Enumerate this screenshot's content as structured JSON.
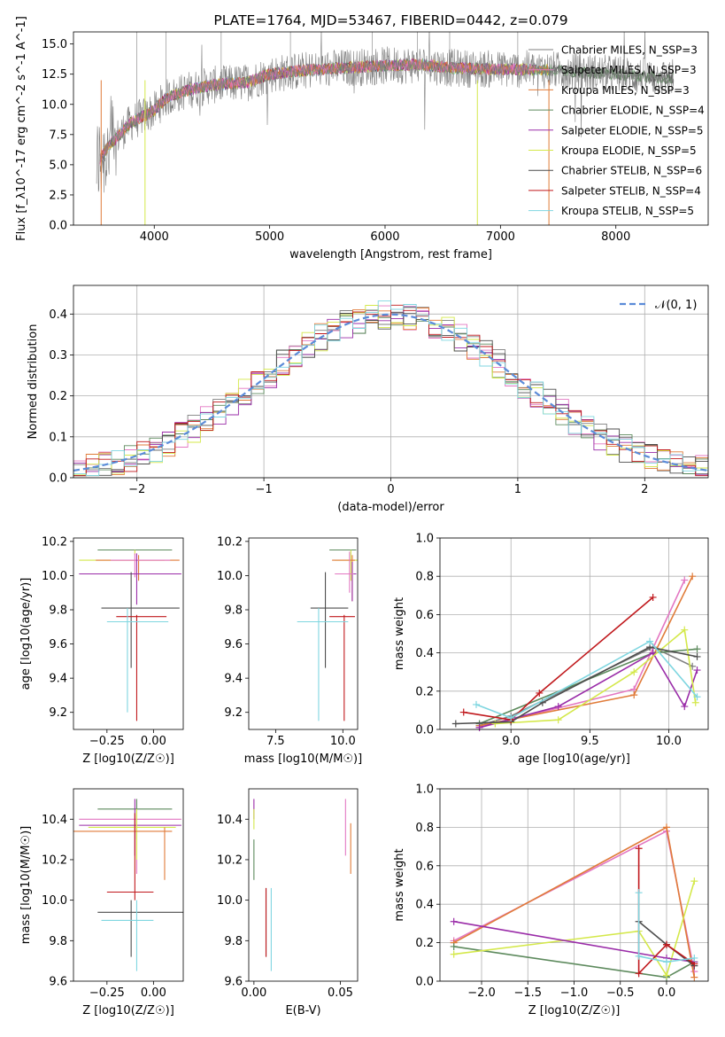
{
  "chart_data": [
    {
      "type": "line",
      "title": "PLATE=1764, MJD=53467, FIBERID=0442, z=0.079",
      "xlabel": "wavelength [Angstrom, rest frame]",
      "ylabel": "Flux [f_λ10^-17 erg cm^-2 s^-1 A^-1]",
      "xlim": [
        3300,
        8800
      ],
      "ylim": [
        0,
        16
      ],
      "xticks": [
        "4000",
        "5000",
        "6000",
        "7000",
        "8000"
      ],
      "yticks": [
        "0.0",
        "2.5",
        "5.0",
        "7.5",
        "10.0",
        "12.5",
        "15.0"
      ],
      "legend_position": "right",
      "legend": [
        {
          "label": "Chabrier MILES, N_SSP=3",
          "color": "#7f7f7f"
        },
        {
          "label": "Salpeter MILES, N_SSP=3",
          "color": "#e377c2"
        },
        {
          "label": "Kroupa MILES, N_SSP=3",
          "color": "#e07b39"
        },
        {
          "label": "Chabrier ELODIE, N_SSP=4",
          "color": "#5d8a5d"
        },
        {
          "label": "Salpeter ELODIE, N_SSP=5",
          "color": "#9a2ca8"
        },
        {
          "label": "Kroupa ELODIE, N_SSP=5",
          "color": "#d4e84a"
        },
        {
          "label": "Chabrier STELIB, N_SSP=6",
          "color": "#4d4d4d"
        },
        {
          "label": "Salpeter STELIB, N_SSP=4",
          "color": "#c0181c"
        },
        {
          "label": "Kroupa STELIB, N_SSP=5",
          "color": "#7fd6e0"
        }
      ],
      "continuum": {
        "x": [
          3500,
          3600,
          3800,
          4000,
          4100,
          4300,
          4500,
          4800,
          5000,
          5300,
          5600,
          6000,
          6300,
          6600,
          7000,
          7300,
          7500,
          8000,
          8400
        ],
        "y": [
          5.0,
          6.5,
          8.5,
          9.5,
          10.5,
          11.2,
          11.6,
          11.8,
          12.5,
          12.8,
          13.0,
          13.2,
          13.3,
          13.0,
          12.9,
          12.9,
          12.8,
          12.5,
          12.2
        ]
      }
    },
    {
      "type": "histogram",
      "xlabel": "(data-model)/error",
      "ylabel": "Normed distribution",
      "xlim": [
        -2.5,
        2.5
      ],
      "ylim": [
        0,
        0.47
      ],
      "xticks": [
        "−2",
        "−1",
        "0",
        "1",
        "2"
      ],
      "yticks": [
        "0.0",
        "0.1",
        "0.2",
        "0.3",
        "0.4"
      ],
      "grid": true,
      "legend_label": "𝒩(0, 1)",
      "legend_position": "top-right",
      "bin_width": 0.1
    },
    {
      "type": "scatter",
      "xlabel": "Z [log10(Z/Z☉)]",
      "ylabel": "age  [log10(age/yr)]",
      "xlim": [
        -0.43,
        0.16
      ],
      "ylim": [
        9.1,
        10.22
      ],
      "xticks": [
        "−0.25",
        "0.00"
      ],
      "yticks": [
        "9.2",
        "9.4",
        "9.6",
        "9.8",
        "10.0",
        "10.2"
      ]
    },
    {
      "type": "scatter",
      "xlabel": "mass [log10(M/M☉)]",
      "xlim": [
        6.5,
        10.55
      ],
      "ylim": [
        9.1,
        10.22
      ],
      "xticks": [
        "7.5",
        "10.0"
      ],
      "yticks": [
        "9.2",
        "9.4",
        "9.6",
        "9.8",
        "10.0",
        "10.2"
      ]
    },
    {
      "type": "line",
      "xlabel": "age  [log10(age/yr)]",
      "ylabel": "mass weight",
      "xlim": [
        8.55,
        10.25
      ],
      "ylim": [
        0,
        1
      ],
      "xticks": [
        "9.0",
        "9.5",
        "10.0"
      ],
      "yticks": [
        "0.0",
        "0.2",
        "0.4",
        "0.6",
        "0.8",
        "1.0"
      ],
      "grid": true,
      "series": [
        {
          "color": "#7f7f7f",
          "x": [
            8.8,
            9.0,
            9.9,
            10.15
          ],
          "y": [
            0.02,
            0.07,
            0.43,
            0.33
          ]
        },
        {
          "color": "#e377c2",
          "x": [
            8.8,
            9.78,
            10.1
          ],
          "y": [
            0.01,
            0.21,
            0.78
          ]
        },
        {
          "color": "#e07b39",
          "x": [
            8.8,
            9.78,
            10.15
          ],
          "y": [
            0.02,
            0.18,
            0.8
          ]
        },
        {
          "color": "#5d8a5d",
          "x": [
            8.8,
            9.9,
            10.18
          ],
          "y": [
            0.03,
            0.4,
            0.42
          ]
        },
        {
          "color": "#9a2ca8",
          "x": [
            8.8,
            9.3,
            9.9,
            10.1,
            10.18
          ],
          "y": [
            0.01,
            0.12,
            0.4,
            0.12,
            0.31
          ]
        },
        {
          "color": "#d4e84a",
          "x": [
            8.9,
            9.3,
            9.78,
            10.1,
            10.17
          ],
          "y": [
            0.03,
            0.05,
            0.3,
            0.52,
            0.14
          ]
        },
        {
          "color": "#4d4d4d",
          "x": [
            8.65,
            9.0,
            9.2,
            9.88,
            10.18
          ],
          "y": [
            0.03,
            0.04,
            0.14,
            0.43,
            0.38
          ]
        },
        {
          "color": "#c0181c",
          "x": [
            8.7,
            9.0,
            9.18,
            9.9
          ],
          "y": [
            0.09,
            0.05,
            0.19,
            0.69
          ]
        },
        {
          "color": "#7fd6e0",
          "x": [
            8.78,
            9.0,
            9.88,
            10.18
          ],
          "y": [
            0.13,
            0.06,
            0.46,
            0.17
          ]
        }
      ]
    },
    {
      "type": "scatter",
      "xlabel": "Z [log10(Z/Z☉)]",
      "ylabel": "mass [log10(M/M☉)]",
      "xlim": [
        -0.43,
        0.16
      ],
      "ylim": [
        9.6,
        10.55
      ],
      "xticks": [
        "−0.25",
        "0.00"
      ],
      "yticks": [
        "9.6",
        "9.8",
        "10.0",
        "10.2",
        "10.4"
      ]
    },
    {
      "type": "scatter",
      "xlabel": "E(B-V)",
      "xlim": [
        -0.003,
        0.06
      ],
      "ylim": [
        9.6,
        10.55
      ],
      "xticks": [
        "0.00",
        "0.05"
      ],
      "yticks": [
        "9.6",
        "9.8",
        "10.0",
        "10.2",
        "10.4"
      ]
    },
    {
      "type": "line",
      "xlabel": "Z [log10(Z/Z☉)]",
      "ylabel": "mass weight",
      "xlim": [
        -2.45,
        0.45
      ],
      "ylim": [
        0,
        1
      ],
      "xticks": [
        "−2.0",
        "−1.5",
        "−1.0",
        "−0.5",
        "0.0"
      ],
      "yticks": [
        "0.0",
        "0.2",
        "0.4",
        "0.6",
        "0.8",
        "1.0"
      ],
      "grid": true,
      "series": [
        {
          "color": "#e377c2",
          "x": [
            -2.3,
            0.0,
            0.3
          ],
          "y": [
            0.21,
            0.78,
            0.05
          ]
        },
        {
          "color": "#e07b39",
          "x": [
            -2.3,
            0.0,
            0.3
          ],
          "y": [
            0.2,
            0.8,
            0.02
          ]
        },
        {
          "color": "#5d8a5d",
          "x": [
            -2.3,
            0.0,
            0.3
          ],
          "y": [
            0.18,
            0.02,
            0.1
          ]
        },
        {
          "color": "#d4e84a",
          "x": [
            -2.3,
            -0.3,
            0.0,
            0.3
          ],
          "y": [
            0.14,
            0.26,
            0.03,
            0.52
          ]
        },
        {
          "color": "#9a2ca8",
          "x": [
            -2.3,
            0.0,
            0.3
          ],
          "y": [
            0.31,
            0.12,
            0.1
          ]
        },
        {
          "color": "#4d4d4d",
          "x": [
            -0.3,
            0.0,
            0.3
          ],
          "y": [
            0.31,
            0.19,
            0.08
          ]
        },
        {
          "color": "#c0181c",
          "x": [
            -0.3,
            -0.3,
            0.0,
            0.3
          ],
          "y": [
            0.69,
            0.04,
            0.19,
            0.09
          ]
        },
        {
          "color": "#7fd6e0",
          "x": [
            -0.3,
            -0.3,
            0.0,
            0.3
          ],
          "y": [
            0.46,
            0.13,
            0.1,
            0.12
          ]
        }
      ]
    }
  ]
}
